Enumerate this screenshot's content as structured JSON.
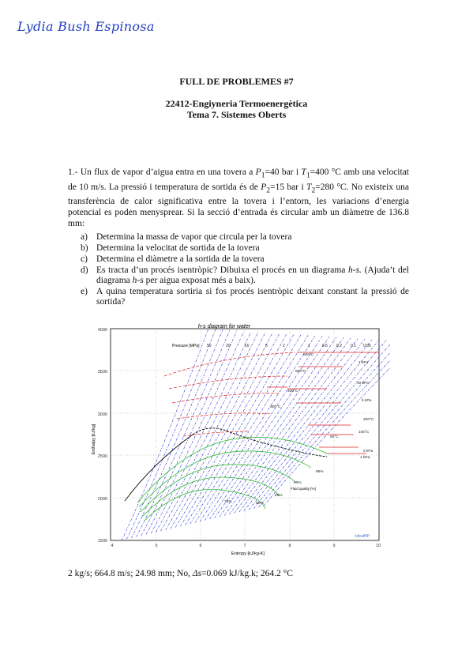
{
  "signature": "Lydia Bush Espinosa",
  "header": {
    "title": "FULL DE PROBLEMES #7",
    "course": "22412-Engiyneria Termoenergètica",
    "topic": "Tema 7. Sistemes Oberts"
  },
  "problem": {
    "number": "1.-",
    "text_1": "Un flux de vapor d’aigua entra en una tovera a ",
    "p1": "P",
    "p1_sub": "1",
    "p1_val": "=40 bar i ",
    "t1": "T",
    "t1_sub": "1",
    "t1_val": "=400 °C amb una velocitat de 10 m/s. La pressió i temperatura de sortida és de ",
    "p2": "P",
    "p2_sub": "2",
    "p2_val": "=15 bar i ",
    "t2": "T",
    "t2_sub": "2",
    "t2_val": "=280 °C. No existeix una transferència de calor significativa entre la tovera i l’entorn, les variacions d’energia potencial es poden menysprear. Si la secció d’entrada és circular amb un diàmetre de 136.8 mm:"
  },
  "questions": [
    {
      "label": "a)",
      "text": "Determina la massa de vapor que circula per la tovera"
    },
    {
      "label": "b)",
      "text": "Determina la velocitat de sortida de la tovera"
    },
    {
      "label": "c)",
      "text": "Determina el diàmetre a la sortida de la tovera"
    },
    {
      "label": "d)",
      "text_a": "Es tracta d’un procés isentròpic? Dibuixa el procés en un diagrama ",
      "hs1": "h-s.",
      "text_b": " (Ajuda’t del diagrama ",
      "hs2": "h-s",
      "text_c": " per aigua exposat més a baix)."
    },
    {
      "label": "e)",
      "text": "A quina temperatura sortiria si fos procés isentròpic deixant constant la pressió de sortida?"
    }
  ],
  "chart": {
    "title": "h-s diagram for water",
    "xlabel": "Entropy [kJ/kg-K]",
    "ylabel": "Enthalpy [kJ/kg]",
    "x_ticks": [
      "4",
      "5",
      "6",
      "7",
      "8",
      "9",
      "10"
    ],
    "y_ticks": [
      "1500",
      "2000",
      "2500",
      "3000",
      "3500",
      "4000"
    ],
    "pressure_legend": "Pressure [MPa]",
    "pressure_labels": [
      "50",
      "20",
      "10",
      "5",
      "2",
      "1",
      "0.5",
      "0.2",
      "0.1",
      "0.05"
    ],
    "temperature_labels": [
      "600°C",
      "500°C",
      "400°C",
      "300°C",
      "200°C",
      "100°C",
      "50°C"
    ],
    "right_labels": [
      "1 kPa",
      "10 kPa",
      "5 kPa",
      "2 kPa",
      "1 kPa"
    ],
    "quality_labels": [
      "95%",
      "90%",
      "85%",
      "80%",
      "75%"
    ],
    "quality_legend": "Fluid quality [%]",
    "brand": "IdealHP",
    "colors": {
      "pressure": "#2a2ad8",
      "temperature": "#e02020",
      "quality": "#18b818",
      "saturation": "#000000"
    }
  },
  "answer": {
    "text_a": "2 kg/s; 664.8 m/s; 24.98 mm; No, ",
    "delta": "Δs",
    "text_b": "=0.069 kJ/kg.k; 264.2 °C"
  }
}
